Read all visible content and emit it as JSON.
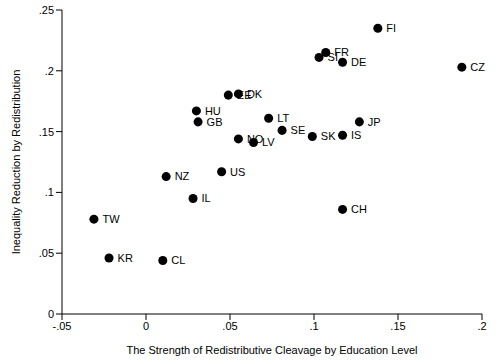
{
  "chart_data": {
    "type": "scatter",
    "x_label": "The Strength of Redistributive Cleavage by Education Level",
    "y_label": "Inequality Reduction by Redistribution",
    "labels": [
      "FI",
      "FR",
      "SI",
      "DE",
      "CZ",
      "EE",
      "DK",
      "HU",
      "GB",
      "LT",
      "SE",
      "NO",
      "LV",
      "SK",
      "JP",
      "IS",
      "US",
      "NZ",
      "IL",
      "CH",
      "TW",
      "KR",
      "CL"
    ],
    "x": [
      0.138,
      0.107,
      0.103,
      0.117,
      0.188,
      0.049,
      0.055,
      0.03,
      0.031,
      0.073,
      0.081,
      0.055,
      0.064,
      0.099,
      0.127,
      0.117,
      0.045,
      0.012,
      0.028,
      0.117,
      -0.031,
      -0.022,
      0.01
    ],
    "y": [
      0.235,
      0.215,
      0.211,
      0.207,
      0.203,
      0.18,
      0.181,
      0.167,
      0.158,
      0.161,
      0.151,
      0.144,
      0.141,
      0.146,
      0.158,
      0.147,
      0.117,
      0.113,
      0.095,
      0.086,
      0.078,
      0.046,
      0.044
    ],
    "color": "#000000",
    "marker": "circle",
    "grid": false,
    "xlim": [
      -0.05,
      0.2
    ],
    "xticks": [
      {
        "value": -0.05,
        "label": "-.05"
      },
      0,
      {
        "value": 0.05,
        "label": ".05"
      },
      {
        "value": 0.1,
        "label": ".1"
      },
      {
        "value": 0.15,
        "label": ".15"
      },
      {
        "value": 0.2,
        "label": ".2"
      }
    ],
    "ylim": [
      0,
      0.25
    ],
    "yticks": [
      0,
      {
        "value": 0.05,
        "label": ".05"
      },
      {
        "value": 0.1,
        "label": ".1"
      },
      {
        "value": 0.15,
        "label": ".15"
      },
      {
        "value": 0.2,
        "label": ".2"
      },
      {
        "value": 0.25,
        "label": ".25"
      }
    ]
  }
}
